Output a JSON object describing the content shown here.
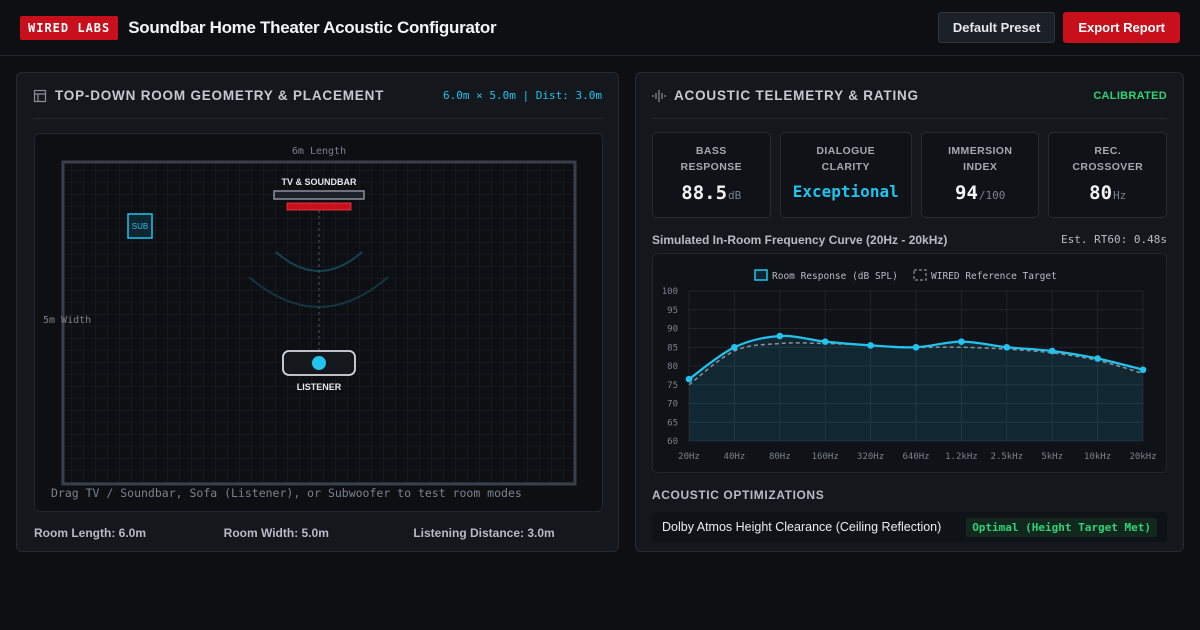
{
  "header": {
    "logo": "WIRED LABS",
    "title": "Soundbar Home Theater Acoustic Configurator",
    "default_preset": "Default Preset",
    "export_report": "Export Report"
  },
  "room_panel": {
    "title": "TOP-DOWN ROOM GEOMETRY & PLACEMENT",
    "meta": "6.0m × 5.0m | Dist: 3.0m",
    "length_label": "6m Length",
    "width_label": "5m Width",
    "tv_label": "TV & SOUNDBAR",
    "sub_label": "SUB",
    "listener_label": "LISTENER",
    "hint": "Drag TV / Soundbar, Sofa (Listener), or Subwoofer to test room modes",
    "stats": {
      "length": "Room Length: 6.0m",
      "width": "Room Width: 5.0m",
      "distance": "Listening Distance: 3.0m"
    }
  },
  "telemetry_panel": {
    "title": "ACOUSTIC TELEMETRY & RATING",
    "status": "CALIBRATED",
    "cards": [
      {
        "label_1": "BASS",
        "label_2": "RESPONSE",
        "value": "88.5",
        "unit": "dB"
      },
      {
        "label_1": "DIALOGUE",
        "label_2": "CLARITY",
        "value": "Exceptional",
        "unit": ""
      },
      {
        "label_1": "IMMERSION",
        "label_2": "INDEX",
        "value": "94",
        "unit": "/100"
      },
      {
        "label_1": "REC.",
        "label_2": "CROSSOVER",
        "value": "80",
        "unit": "Hz"
      }
    ],
    "curve_title": "Simulated In-Room Frequency Curve (20Hz - 20kHz)",
    "rt60": "Est. RT60: 0.48s",
    "optimizations_title": "ACOUSTIC OPTIMIZATIONS",
    "optimizations": [
      {
        "label": "Dolby Atmos Height Clearance (Ceiling Reflection)",
        "status": "Optimal (Height Target Met)"
      }
    ]
  },
  "chart_data": {
    "type": "line",
    "categories": [
      "20Hz",
      "40Hz",
      "80Hz",
      "160Hz",
      "320Hz",
      "640Hz",
      "1.2kHz",
      "2.5kHz",
      "5kHz",
      "10kHz",
      "20kHz"
    ],
    "series": [
      {
        "name": "Room Response (dB SPL)",
        "values": [
          76.5,
          85,
          88,
          86.5,
          85.5,
          85,
          86.5,
          85,
          84,
          82,
          79
        ]
      },
      {
        "name": "WIRED Reference Target",
        "values": [
          75,
          84,
          86,
          86,
          85.5,
          85,
          85,
          84.5,
          83.5,
          81.5,
          78
        ]
      }
    ],
    "ylim": [
      60,
      100
    ],
    "yticks": [
      100,
      95,
      90,
      85,
      80,
      75,
      70,
      65,
      60
    ],
    "grid": true,
    "legend": "top-center",
    "colors": {
      "response": "#22c3ee",
      "target": "#8a9098"
    }
  }
}
